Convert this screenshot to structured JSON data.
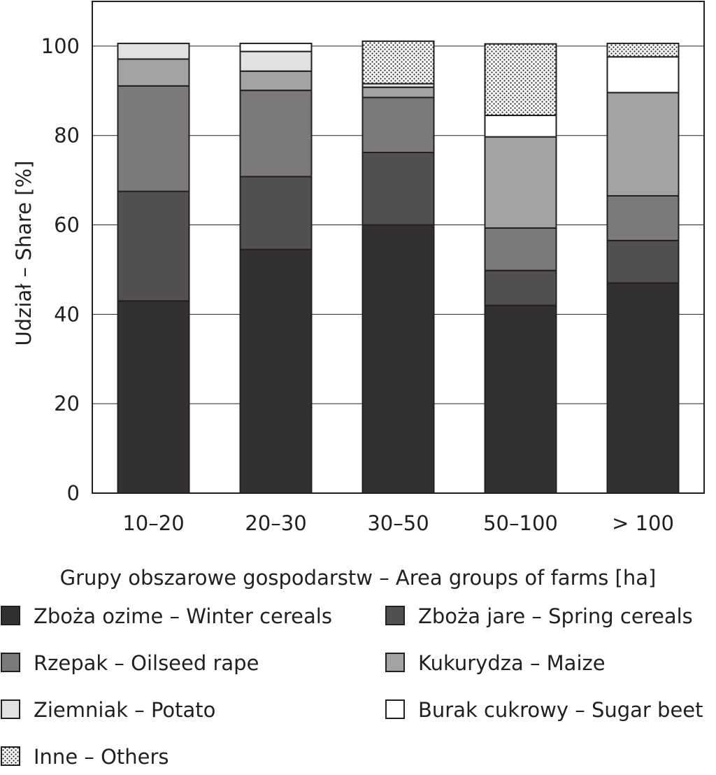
{
  "chart_data": {
    "type": "bar",
    "stacked": true,
    "xlabel": "Grupy obszarowe gospodarstw – Area groups of farms [ha]",
    "ylabel": "Udział – Share [%]",
    "ylim": [
      0,
      110
    ],
    "yticks": [
      0,
      20,
      40,
      60,
      80,
      100
    ],
    "grid": "horizontal",
    "legend_position": "bottom",
    "categories": [
      "10–20",
      "20–30",
      "30–50",
      "50–100",
      "> 100"
    ],
    "series": [
      {
        "name": "Zboża ozime – Winter cereals",
        "color": "#333031",
        "pattern": "solid",
        "values": [
          43,
          54.5,
          60,
          42,
          47
        ]
      },
      {
        "name": "Zboża jare – Spring cereals",
        "color": "#525051",
        "pattern": "solid",
        "values": [
          24.5,
          16.3,
          16.2,
          7.8,
          9.5
        ]
      },
      {
        "name": "Rzepak – Oilseed rape",
        "color": "#7b797a",
        "pattern": "solid",
        "values": [
          23.6,
          19.3,
          12.3,
          9.5,
          10
        ]
      },
      {
        "name": "Kukurydza – Maize",
        "color": "#a4a3a3",
        "pattern": "solid",
        "values": [
          6,
          4.3,
          2.3,
          20.4,
          23.1
        ]
      },
      {
        "name": "Ziemniak – Potato",
        "color": "#e1e1e1",
        "pattern": "solid",
        "values": [
          3.5,
          4.4,
          0.8,
          0,
          0
        ]
      },
      {
        "name": "Burak cukrowy – Sugar beet",
        "color": "#ffffff",
        "pattern": "solid",
        "values": [
          0,
          1.8,
          0,
          4.8,
          8
        ]
      },
      {
        "name": "Inne – Others",
        "color": "#ffffff",
        "pattern": "dots",
        "values": [
          0,
          0,
          9.5,
          16,
          3
        ]
      }
    ]
  }
}
